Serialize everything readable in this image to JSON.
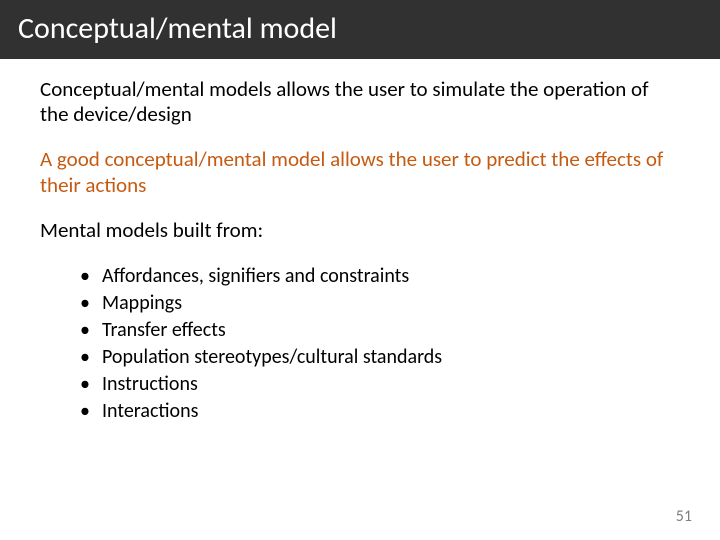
{
  "colors": {
    "title_bar_bg": "#313131",
    "title_text": "#ffffff",
    "body_text": "#000000",
    "highlight_text": "#c55a11",
    "page_num_text": "#7f7f7f",
    "background": "#ffffff"
  },
  "typography": {
    "title_fontsize": 30,
    "body_fontsize": 21,
    "bullet_fontsize": 20,
    "pagenum_fontsize": 16,
    "font_family": "Calibri"
  },
  "title": "Conceptual/mental model",
  "paragraphs": [
    {
      "text": "Conceptual/mental models allows the user to simulate the operation of the device/design",
      "highlight": false
    },
    {
      "text": "A good conceptual/mental model allows the user to predict the effects of their actions",
      "highlight": true
    },
    {
      "text": "Mental models built from:",
      "highlight": false
    }
  ],
  "bullets": [
    "Affordances, signifiers and constraints",
    "Mappings",
    "Transfer effects",
    "Population stereotypes/cultural standards",
    "Instructions",
    "Interactions"
  ],
  "page_number": "51"
}
